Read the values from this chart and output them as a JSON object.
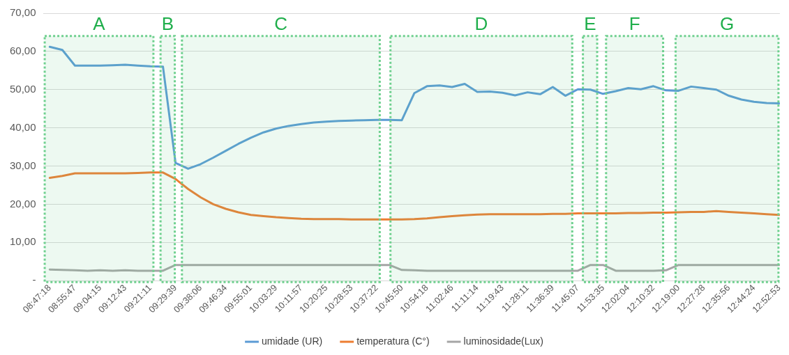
{
  "chart_data": {
    "type": "line",
    "x": [
      8.7883,
      8.859,
      8.9297,
      9.0003,
      9.0708,
      9.1414,
      9.2119,
      9.2825,
      9.3531,
      9.4236,
      9.4942,
      9.5646,
      9.635,
      9.7056,
      9.7761,
      9.8465,
      9.9169,
      9.9875,
      10.0581,
      10.1286,
      10.1992,
      10.2697,
      10.3403,
      10.4108,
      10.4814,
      10.5521,
      10.6228,
      10.6933,
      10.7639,
      10.8344,
      10.905,
      10.9756,
      11.0461,
      11.1167,
      11.1872,
      11.2579,
      11.3286,
      11.3992,
      11.4697,
      11.5403,
      11.6108,
      11.6814,
      11.7519,
      11.8225,
      11.8931,
      11.9638,
      12.0344,
      12.105,
      12.1756,
      12.2461,
      12.3167,
      12.3872,
      12.4578,
      12.5283,
      12.5989,
      12.6694,
      12.74,
      12.8107,
      12.8814
    ],
    "series": [
      {
        "name": "umidade (UR)",
        "color": "#5b9bd5",
        "values": [
          61.2,
          60.4,
          56.3,
          56.3,
          56.3,
          56.4,
          56.5,
          56.3,
          56.1,
          56.0,
          30.8,
          29.3,
          30.5,
          32.2,
          34.0,
          35.8,
          37.4,
          38.8,
          39.8,
          40.5,
          41.0,
          41.4,
          41.6,
          41.8,
          41.9,
          42.0,
          42.1,
          42.1,
          42.0,
          49.1,
          50.9,
          51.1,
          50.7,
          51.5,
          49.4,
          49.5,
          49.2,
          48.5,
          49.3,
          48.8,
          50.7,
          48.4,
          50.1,
          50.0,
          48.9,
          49.6,
          50.4,
          50.1,
          50.9,
          49.8,
          49.7,
          50.8,
          50.4,
          50.0,
          48.4,
          47.4,
          46.8,
          46.5,
          46.4
        ]
      },
      {
        "name": "temperatura (C°)",
        "color": "#ed7d31",
        "values": [
          26.9,
          27.4,
          28.1,
          28.1,
          28.1,
          28.1,
          28.1,
          28.2,
          28.3,
          28.3,
          26.6,
          24.0,
          21.8,
          20.0,
          18.8,
          17.9,
          17.2,
          16.9,
          16.6,
          16.4,
          16.2,
          16.1,
          16.1,
          16.1,
          16.0,
          16.0,
          16.0,
          16.0,
          16.0,
          16.1,
          16.3,
          16.6,
          16.9,
          17.1,
          17.3,
          17.4,
          17.4,
          17.4,
          17.4,
          17.4,
          17.5,
          17.5,
          17.6,
          17.6,
          17.6,
          17.6,
          17.7,
          17.7,
          17.8,
          17.8,
          17.9,
          18.0,
          18.0,
          18.2,
          18.0,
          17.8,
          17.6,
          17.4,
          17.2
        ]
      },
      {
        "name": "luminosidade(Lux)",
        "color": "#a5a5a5",
        "values": [
          2.9,
          2.8,
          2.7,
          2.6,
          2.7,
          2.6,
          2.7,
          2.6,
          2.6,
          2.6,
          4.1,
          4.1,
          4.1,
          4.1,
          4.1,
          4.1,
          4.1,
          4.1,
          4.1,
          4.1,
          4.1,
          4.1,
          4.1,
          4.1,
          4.1,
          4.1,
          4.1,
          4.1,
          2.8,
          2.7,
          2.6,
          2.6,
          2.6,
          2.6,
          2.6,
          2.6,
          2.6,
          2.6,
          2.6,
          2.6,
          2.6,
          2.6,
          2.6,
          4.1,
          4.1,
          2.6,
          2.6,
          2.6,
          2.6,
          2.7,
          4.1,
          4.1,
          4.1,
          4.1,
          4.1,
          4.1,
          4.1,
          4.1,
          4.1
        ]
      }
    ],
    "xlim": [
      8.75,
      12.885
    ],
    "xticks": [
      {
        "value": 8.7883,
        "label": "08:47:18"
      },
      {
        "value": 8.9297,
        "label": "08:55:47"
      },
      {
        "value": 9.0708,
        "label": "09:04:15"
      },
      {
        "value": 9.2119,
        "label": "09:12:43"
      },
      {
        "value": 9.3531,
        "label": "09:21:11"
      },
      {
        "value": 9.4942,
        "label": "09:29:39"
      },
      {
        "value": 9.635,
        "label": "09:38:06"
      },
      {
        "value": 9.7761,
        "label": "09:46:34"
      },
      {
        "value": 9.9169,
        "label": "09:55:01"
      },
      {
        "value": 10.0581,
        "label": "10:03:29"
      },
      {
        "value": 10.1992,
        "label": "10:11:57"
      },
      {
        "value": 10.3403,
        "label": "10:20:25"
      },
      {
        "value": 10.4814,
        "label": "10:28:53"
      },
      {
        "value": 10.6228,
        "label": "10:37:22"
      },
      {
        "value": 10.7639,
        "label": "10:45:50"
      },
      {
        "value": 10.905,
        "label": "10:54:18"
      },
      {
        "value": 11.0461,
        "label": "11:02:46"
      },
      {
        "value": 11.1872,
        "label": "11:11:14"
      },
      {
        "value": 11.3286,
        "label": "11:19:43"
      },
      {
        "value": 11.4697,
        "label": "11:28:11"
      },
      {
        "value": 11.6108,
        "label": "11:36:39"
      },
      {
        "value": 11.7519,
        "label": "11:45:07"
      },
      {
        "value": 11.8931,
        "label": "11:53:35"
      },
      {
        "value": 12.0344,
        "label": "12:02:04"
      },
      {
        "value": 12.1756,
        "label": "12:10:32"
      },
      {
        "value": 12.3167,
        "label": "12:19:00"
      },
      {
        "value": 12.4578,
        "label": "12:27:28"
      },
      {
        "value": 12.5989,
        "label": "12:35:56"
      },
      {
        "value": 12.74,
        "label": "12:44:24"
      },
      {
        "value": 12.8814,
        "label": "12:52:53"
      }
    ],
    "ylim": [
      0,
      70
    ],
    "yticks": [
      {
        "value": 0,
        "label": "-"
      },
      {
        "value": 10,
        "label": "10,00"
      },
      {
        "value": 20,
        "label": "20,00"
      },
      {
        "value": 30,
        "label": "30,00"
      },
      {
        "value": 40,
        "label": "40,00"
      },
      {
        "value": 50,
        "label": "50,00"
      },
      {
        "value": 60,
        "label": "60,00"
      },
      {
        "value": 70,
        "label": "70,00"
      }
    ],
    "bands": [
      {
        "axis": "x",
        "from": 8.76,
        "to": 9.37,
        "label": "A",
        "color": "#6fd08f"
      },
      {
        "axis": "x",
        "from": 9.41,
        "to": 9.49,
        "label": "B",
        "color": "#6fd08f"
      },
      {
        "axis": "x",
        "from": 9.53,
        "to": 10.64,
        "label": "C",
        "color": "#6fd08f"
      },
      {
        "axis": "x",
        "from": 10.7,
        "to": 11.72,
        "label": "D",
        "color": "#6fd08f"
      },
      {
        "axis": "x",
        "from": 11.78,
        "to": 11.86,
        "label": "E",
        "color": "#6fd08f"
      },
      {
        "axis": "x",
        "from": 11.91,
        "to": 12.23,
        "label": "F",
        "color": "#6fd08f"
      },
      {
        "axis": "x",
        "from": 12.3,
        "to": 12.885,
        "label": "G",
        "color": "#6fd08f"
      }
    ],
    "grid": "y",
    "legend": "bottom",
    "marker": "none",
    "line_style": "solid"
  }
}
